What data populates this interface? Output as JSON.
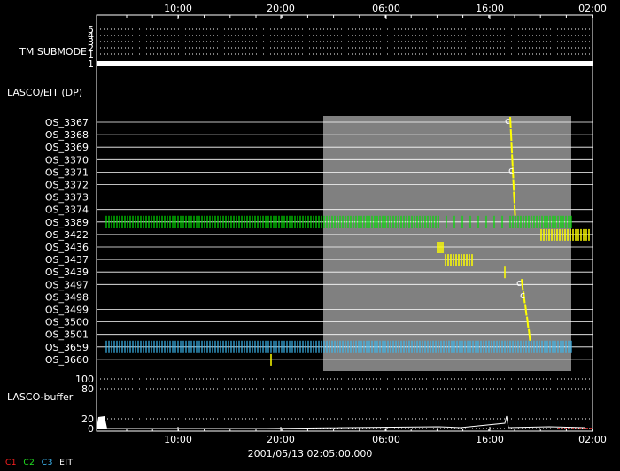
{
  "chart_data": {
    "type": "timeline",
    "time_ticks": [
      "10:00",
      "20:00",
      "06:00",
      "16:00",
      "02:00"
    ],
    "timestamp": "2001/05/13 02:05:00.000",
    "submode": {
      "label": "TM SUBMODE",
      "levels": [
        "5",
        "4",
        "3",
        "2",
        "1"
      ],
      "value": 1
    },
    "section_label": "LASCO/EIT (DP)",
    "rows": [
      {
        "name": "OS_3367"
      },
      {
        "name": "OS_3368"
      },
      {
        "name": "OS_3369"
      },
      {
        "name": "OS_3370"
      },
      {
        "name": "OS_3371"
      },
      {
        "name": "OS_3372"
      },
      {
        "name": "OS_3373"
      },
      {
        "name": "OS_3374"
      },
      {
        "name": "OS_3389"
      },
      {
        "name": "OS_3422"
      },
      {
        "name": "OS_3436"
      },
      {
        "name": "OS_3437"
      },
      {
        "name": "OS_3439"
      },
      {
        "name": "OS_3497"
      },
      {
        "name": "OS_3498"
      },
      {
        "name": "OS_3499"
      },
      {
        "name": "OS_3500"
      },
      {
        "name": "OS_3501"
      },
      {
        "name": "OS_3659"
      },
      {
        "name": "OS_3660"
      }
    ],
    "buffer": {
      "label": "LASCO-buffer",
      "ticks": [
        "100",
        "80",
        "20",
        "0"
      ]
    },
    "legend": [
      {
        "name": "C1",
        "color": "#ff2020"
      },
      {
        "name": "C2",
        "color": "#20e020"
      },
      {
        "name": "C3",
        "color": "#40c0ff"
      },
      {
        "name": "EIT",
        "color": "#ffffff"
      }
    ],
    "colors": {
      "c2": "#00e000",
      "c3": "#3bb8f0",
      "eit": "#ffff00",
      "shade": "#808080",
      "grid": "#ffffff"
    }
  }
}
